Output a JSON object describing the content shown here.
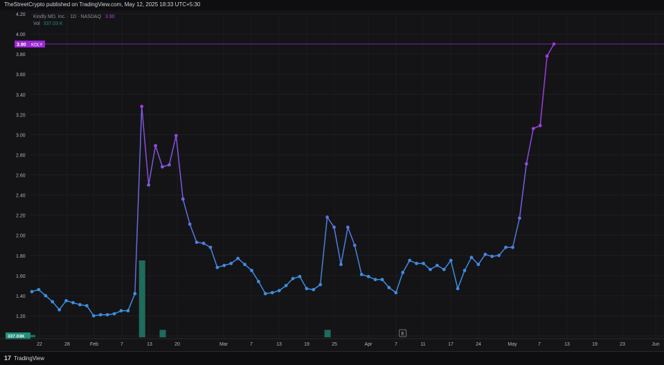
{
  "header": {
    "attribution": "TheStreetCrypto published on TradingView.com, May 12, 2025 18:33 UTC+5:30"
  },
  "legend": {
    "symbol_desc": "Kindly MD, Inc. · 1D · NASDAQ",
    "last_price": "3.90",
    "vol_label": "Vol",
    "vol_value": "337.03 K"
  },
  "price_tag": {
    "value": "3.90",
    "ticker": "KDLY"
  },
  "volume_tag": "337.03K",
  "footer": {
    "brand": "TradingView",
    "logo": "17"
  },
  "colors": {
    "line_blue": "#3c8fe0",
    "line_purple": "#9c3fe0",
    "volume": "#1f6b5c",
    "tag": "#9c27d6"
  },
  "chart_data": {
    "type": "line",
    "title": "",
    "ylim": [
      1.0,
      4.2
    ],
    "yticks": [
      "4.20",
      "4.00",
      "3.80",
      "3.60",
      "3.40",
      "3.20",
      "3.00",
      "2.80",
      "2.60",
      "2.40",
      "2.20",
      "2.00",
      "1.80",
      "1.60",
      "1.40",
      "1.20",
      "1.0000"
    ],
    "xticks": [
      "22",
      "28",
      "Feb",
      "7",
      "13",
      "20",
      "Mar",
      "7",
      "13",
      "19",
      "25",
      "Apr",
      "7",
      "11",
      "17",
      "24",
      "May",
      "7",
      "13",
      "19",
      "23",
      "Jun"
    ],
    "event_markers": [
      "E",
      "E"
    ],
    "earnings_marker_indices": [
      54,
      99
    ],
    "series": [
      {
        "values": [
          1.44,
          1.46,
          1.4,
          1.34,
          1.26,
          1.35,
          1.33,
          1.31,
          1.3,
          1.2,
          1.21,
          1.21,
          1.22,
          1.25,
          1.25,
          1.42,
          3.28,
          2.5,
          2.89,
          2.68,
          2.7,
          2.99,
          2.36,
          2.11,
          1.93,
          1.92,
          1.88,
          1.68,
          1.7,
          1.72,
          1.77,
          1.71,
          1.65,
          1.54,
          1.42,
          1.43,
          1.45,
          1.5,
          1.57,
          1.59,
          1.47,
          1.46,
          1.51,
          2.18,
          2.08,
          1.71,
          2.08,
          1.9,
          1.61,
          1.59,
          1.56,
          1.56,
          1.48,
          1.43,
          1.63,
          1.75,
          1.72,
          1.72,
          1.66,
          1.7,
          1.66,
          1.75,
          1.47,
          1.65,
          1.78,
          1.71,
          1.81,
          1.79,
          1.8,
          1.88,
          1.88,
          2.17,
          2.71,
          3.06,
          3.09,
          3.78,
          3.9
        ]
      }
    ],
    "volume_bars": [
      {
        "index": 16,
        "value": 1.75
      },
      {
        "index": 19,
        "value": 1.06
      },
      {
        "index": 43,
        "value": 1.06
      },
      {
        "index": 0,
        "value": 1.01
      }
    ]
  }
}
